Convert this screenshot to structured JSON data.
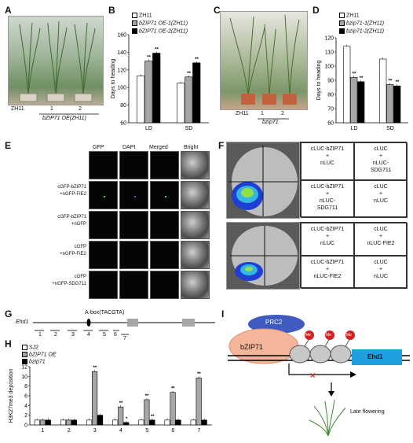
{
  "panels": {
    "A": {
      "letter": "A",
      "photo_labels": [
        "ZH11",
        "1",
        "2"
      ],
      "caption": "bZIP71 OE(ZH11)"
    },
    "B": {
      "letter": "B",
      "legend": [
        "ZH11",
        "bZIP71 OE-1(ZH11)",
        "bZIP71 OE-2(ZH11)"
      ],
      "colors": [
        "#ffffff",
        "#a6a6a6",
        "#000000"
      ],
      "ylabel": "Days to heading",
      "yticks": [
        "60",
        "80",
        "100",
        "120",
        "140",
        "160"
      ],
      "ymin": 60,
      "ymax": 160,
      "categories": [
        "LD",
        "SD"
      ],
      "values": [
        [
          113,
          130,
          139
        ],
        [
          105,
          112,
          128
        ]
      ],
      "sig": [
        [
          "",
          "**",
          "**"
        ],
        [
          "",
          "**",
          "**"
        ]
      ]
    },
    "C": {
      "letter": "C",
      "photo_labels": [
        "ZH11",
        "1",
        "2"
      ],
      "caption": "bzip71"
    },
    "D": {
      "letter": "D",
      "legend": [
        "ZH11",
        "bzip71-1(ZH11)",
        "bzip71-2(ZH11)"
      ],
      "colors": [
        "#ffffff",
        "#a6a6a6",
        "#000000"
      ],
      "ylabel": "Days to heading",
      "yticks": [
        "60",
        "70",
        "80",
        "90",
        "100",
        "110",
        "120"
      ],
      "ymin": 60,
      "ymax": 120,
      "categories": [
        "LD",
        "SD"
      ],
      "values": [
        [
          114,
          92,
          89
        ],
        [
          105,
          87,
          86
        ]
      ],
      "sig": [
        [
          "",
          "**",
          "**"
        ],
        [
          "",
          "**",
          "**"
        ]
      ]
    },
    "E": {
      "letter": "E",
      "col_headers": [
        "GFP",
        "DAPI",
        "Merged",
        "Bright"
      ],
      "rows": [
        [
          "cGFP-bZIP71",
          "+nGFP-FIE2"
        ],
        [
          "cGFP-bZIP71",
          "+nGFP"
        ],
        [
          "cGFP",
          "+nGFP-FIE2"
        ],
        [
          "cGFP",
          "+nGFP-SDG711"
        ]
      ]
    },
    "F": {
      "letter": "F",
      "top": [
        [
          "cLUC-bZIP71",
          "+",
          "nLUC"
        ],
        [
          "cLUC",
          "+",
          "nLUC-",
          "SDG711"
        ],
        [
          "cLUC-bZIP71",
          "+",
          "nLUC-",
          "SDG711"
        ],
        [
          "cLUC",
          "+",
          "nLUC"
        ]
      ],
      "bottom": [
        [
          "cLUC-bZIP71",
          "+",
          "nLUC"
        ],
        [
          "cLUC",
          "+",
          "nLUC-FIE2"
        ],
        [
          "cLUC-bZIP71",
          "+",
          "nLUC-FIE2"
        ],
        [
          "cLUC",
          "+",
          "nLUC"
        ]
      ]
    },
    "G": {
      "letter": "G",
      "gene": "Ehd1",
      "abox": "A-box(TACGTA)",
      "regions": [
        "1",
        "2",
        "3",
        "4",
        "5",
        "6",
        "7"
      ]
    },
    "H": {
      "letter": "H",
      "legend": [
        "SJ2",
        "bZIP71 OE",
        "bzip71"
      ],
      "colors": [
        "#ffffff",
        "#a6a6a6",
        "#000000"
      ],
      "ylabel": "H3K27me3 deposition",
      "yticks": [
        "0",
        "2",
        "4",
        "6",
        "8",
        "10",
        "12"
      ],
      "ymin": 0,
      "ymax": 12,
      "categories": [
        "1",
        "2",
        "3",
        "4",
        "5",
        "6",
        "7"
      ],
      "values": [
        [
          1,
          1,
          1
        ],
        [
          1,
          1,
          1
        ],
        [
          1,
          11,
          2
        ],
        [
          1,
          3.7,
          0.5
        ],
        [
          1,
          5.2,
          1
        ],
        [
          1,
          6.7,
          1
        ],
        [
          1,
          9.7,
          1
        ]
      ],
      "sig": [
        [
          "",
          "",
          ""
        ],
        [
          "",
          "",
          ""
        ],
        [
          "",
          "**",
          ""
        ],
        [
          "",
          "**",
          "*"
        ],
        [
          "",
          "**",
          "**"
        ],
        [
          "",
          "**",
          ""
        ],
        [
          "",
          "**",
          ""
        ]
      ]
    },
    "I": {
      "letter": "I",
      "prc2": "PRC2",
      "bzip": "bZIP71",
      "me": [
        "Me",
        "Me",
        "Me"
      ],
      "gene": "Ehd1",
      "caption": "Late flowering"
    }
  }
}
